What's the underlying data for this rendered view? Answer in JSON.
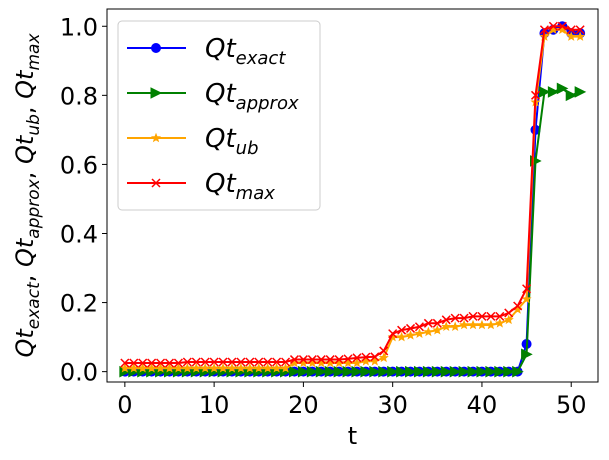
{
  "chart_data": {
    "type": "line",
    "xlabel": "t",
    "ylabel": "Qt_exact, Qt_approx, Qt_ub, Qt_max",
    "ylabel_parts": [
      {
        "base": "Qt",
        "sub": "exact"
      },
      {
        "base": "Qt",
        "sub": "approx"
      },
      {
        "base": "Qt",
        "sub": "ub"
      },
      {
        "base": "Qt",
        "sub": "max"
      }
    ],
    "xlim": [
      -2,
      53
    ],
    "ylim": [
      -0.03,
      1.05
    ],
    "xticks": [
      0,
      10,
      20,
      30,
      40,
      50
    ],
    "xtick_labels": [
      "0",
      "10",
      "20",
      "30",
      "40",
      "50"
    ],
    "yticks": [
      0.0,
      0.2,
      0.4,
      0.6,
      0.8,
      1.0
    ],
    "ytick_labels": [
      "0.0",
      "0.2",
      "0.4",
      "0.6",
      "0.8",
      "1.0"
    ],
    "grid": false,
    "legend_position": "upper-left",
    "x": [
      0,
      1,
      2,
      3,
      4,
      5,
      6,
      7,
      8,
      9,
      10,
      11,
      12,
      13,
      14,
      15,
      16,
      17,
      18,
      19,
      20,
      21,
      22,
      23,
      24,
      25,
      26,
      27,
      28,
      29,
      30,
      31,
      32,
      33,
      34,
      35,
      36,
      37,
      38,
      39,
      40,
      41,
      42,
      43,
      44,
      45,
      46,
      47,
      48,
      49,
      50,
      51
    ],
    "series": [
      {
        "name": "Qt_exact",
        "label_base": "Qt",
        "label_sub": "exact",
        "color": "#0000ff",
        "marker": "circle",
        "values": [
          0,
          0,
          0,
          0,
          0,
          0,
          0,
          0,
          0,
          0,
          0,
          0,
          0,
          0,
          0,
          0,
          0,
          0,
          0,
          0,
          0,
          0,
          0,
          0,
          0,
          0,
          0,
          0,
          0,
          0,
          0,
          0,
          0,
          0,
          0,
          0,
          0,
          0,
          0,
          0,
          0,
          0,
          0,
          0,
          0,
          0.08,
          0.7,
          0.98,
          0.99,
          1.0,
          0.98,
          0.98
        ]
      },
      {
        "name": "Qt_approx",
        "label_base": "Qt",
        "label_sub": "approx",
        "color": "#008000",
        "marker": "triangle-right",
        "values": [
          0,
          0,
          0,
          0,
          0,
          0,
          0,
          0,
          0,
          0,
          0,
          0,
          0,
          0,
          0,
          0,
          0,
          0,
          0,
          0,
          0,
          0,
          0,
          0,
          0,
          0,
          0,
          0,
          0,
          0,
          0,
          0,
          0,
          0,
          0,
          0,
          0,
          0,
          0,
          0,
          0,
          0,
          0,
          0,
          0,
          0.05,
          0.61,
          0.81,
          0.81,
          0.82,
          0.8,
          0.81
        ]
      },
      {
        "name": "Qt_ub",
        "label_base": "Qt",
        "label_sub": "ub",
        "color": "#ffa500",
        "marker": "star",
        "values": [
          0.01,
          0.01,
          0.01,
          0.01,
          0.01,
          0.01,
          0.01,
          0.01,
          0.01,
          0.01,
          0.01,
          0.01,
          0.01,
          0.01,
          0.01,
          0.01,
          0.01,
          0.01,
          0.01,
          0.025,
          0.025,
          0.025,
          0.025,
          0.025,
          0.025,
          0.025,
          0.025,
          0.03,
          0.03,
          0.04,
          0.1,
          0.1,
          0.105,
          0.11,
          0.115,
          0.12,
          0.13,
          0.13,
          0.135,
          0.135,
          0.135,
          0.135,
          0.14,
          0.15,
          0.18,
          0.21,
          0.78,
          0.97,
          0.99,
          0.99,
          0.97,
          0.97
        ]
      },
      {
        "name": "Qt_max",
        "label_base": "Qt",
        "label_sub": "max",
        "color": "#ff0000",
        "marker": "x",
        "values": [
          0.025,
          0.025,
          0.025,
          0.025,
          0.025,
          0.025,
          0.025,
          0.028,
          0.028,
          0.028,
          0.028,
          0.028,
          0.028,
          0.028,
          0.028,
          0.028,
          0.028,
          0.028,
          0.028,
          0.035,
          0.035,
          0.035,
          0.035,
          0.035,
          0.035,
          0.037,
          0.04,
          0.042,
          0.043,
          0.06,
          0.11,
          0.12,
          0.125,
          0.13,
          0.14,
          0.14,
          0.15,
          0.155,
          0.155,
          0.16,
          0.16,
          0.16,
          0.16,
          0.17,
          0.19,
          0.24,
          0.8,
          0.99,
          1.0,
          1.0,
          0.99,
          0.99
        ]
      }
    ]
  }
}
